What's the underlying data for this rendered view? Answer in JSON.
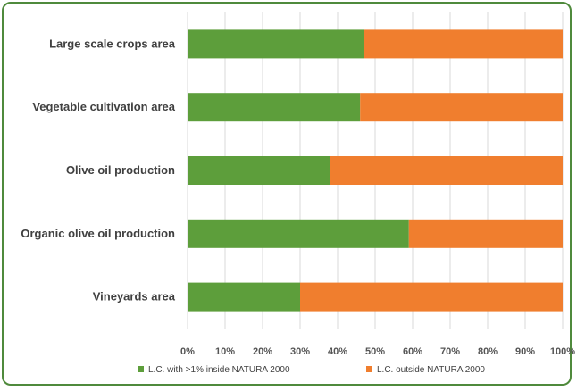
{
  "chart_data": {
    "type": "bar",
    "orientation": "horizontal",
    "stacked": true,
    "categories": [
      "Large scale crops area",
      "Vegetable cultivation area",
      "Olive oil production",
      "Organic olive oil production",
      "Vineyards area"
    ],
    "series": [
      {
        "name": "L.C. with >1% inside NATURA 2000",
        "color": "#5d9e3b",
        "values": [
          47,
          46,
          38,
          59,
          30
        ]
      },
      {
        "name": "L.C. outside NATURA 2000",
        "color": "#f07e2e",
        "values": [
          53,
          54,
          62,
          41,
          70
        ]
      }
    ],
    "x_ticks": [
      "0%",
      "10%",
      "20%",
      "30%",
      "40%",
      "50%",
      "60%",
      "70%",
      "80%",
      "90%",
      "100%"
    ],
    "xlim": [
      0,
      100
    ],
    "grid": true,
    "legend_position": "bottom",
    "title": "",
    "xlabel": "",
    "ylabel": ""
  }
}
